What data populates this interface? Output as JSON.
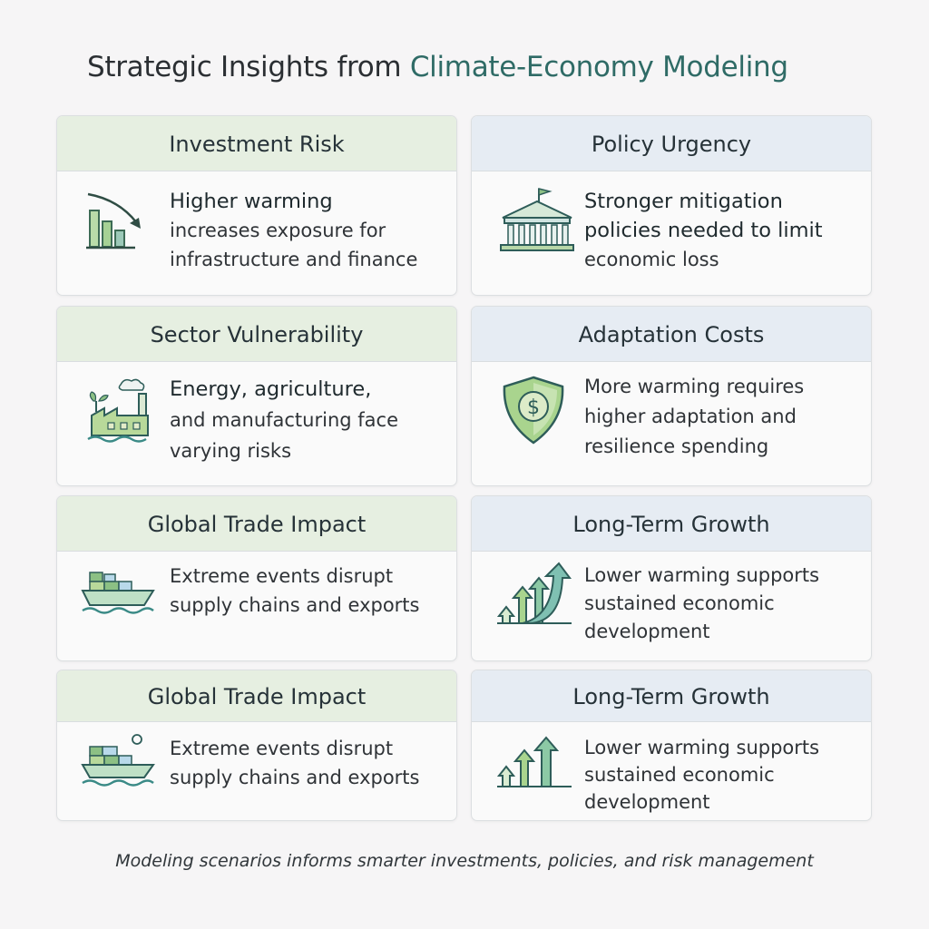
{
  "title": {
    "part1": "Strategic Insights from ",
    "part2": "Climate-Economy Modeling"
  },
  "cards": [
    {
      "header": "Investment Risk",
      "lead": "Higher warming",
      "rest": "increases exposure for infrastructure and finance",
      "icon": "declining-bar-chart-icon"
    },
    {
      "header": "Policy Urgency",
      "lead": "Stronger mitigation policies needed to limit",
      "rest": "economic loss",
      "icon": "government-building-icon"
    },
    {
      "header": "Sector Vulnerability",
      "lead": "Energy, agriculture,",
      "rest": "and manufacturing face varying risks",
      "icon": "factory-icon"
    },
    {
      "header": "Adaptation Costs",
      "lead": "",
      "rest": "More warming requires higher adaptation and resilience spending",
      "icon": "dollar-shield-icon"
    },
    {
      "header": "Global Trade Impact",
      "lead": "",
      "rest": "Extreme events disrupt supply chains and exports",
      "icon": "cargo-ship-icon"
    },
    {
      "header": "Long-Term Growth",
      "lead": "",
      "rest": "Lower warming supports sustained economic development",
      "icon": "rising-arrows-icon"
    },
    {
      "header": "Global Trade Impact",
      "lead": "",
      "rest": "Extreme events disrupt supply chains and exports",
      "icon": "cargo-ship-icon"
    },
    {
      "header": "Long-Term Growth",
      "lead": "",
      "rest": "Lower warming supports sustained economic development",
      "icon": "rising-arrows-icon"
    }
  ],
  "footer": "Modeling scenarios informs smarter investments, policies, and risk management",
  "colors": {
    "green_header": "#e6efe1",
    "blue_header": "#e6ecf3",
    "accent_teal": "#2f6b66",
    "icon_green": "#8cc084",
    "icon_dark": "#2e5d59"
  }
}
